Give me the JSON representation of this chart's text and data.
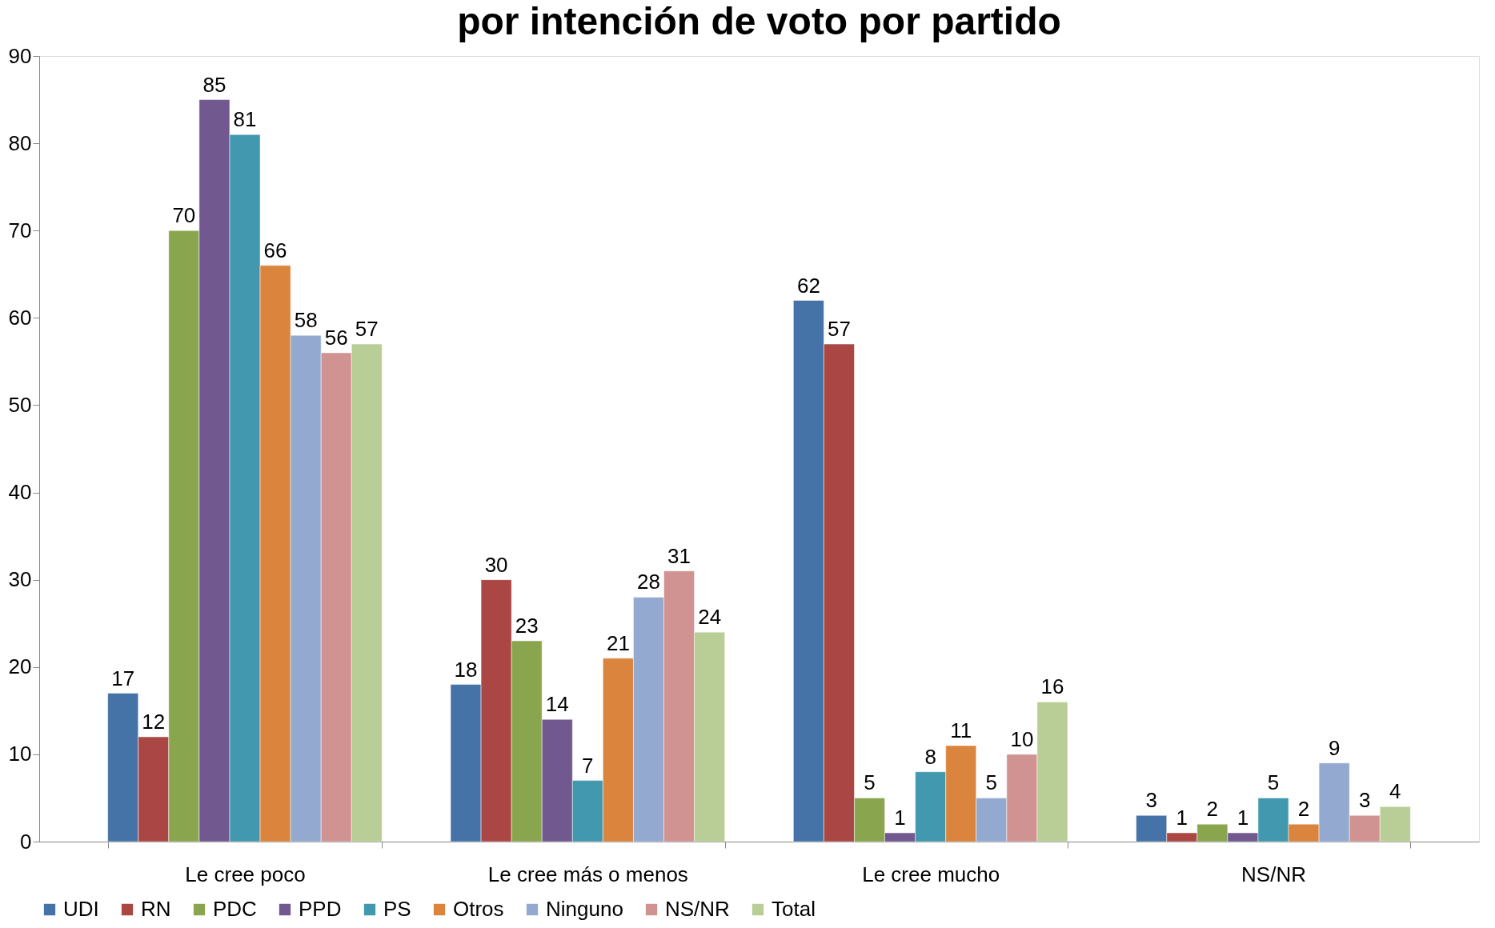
{
  "chart_data": {
    "type": "bar",
    "title": "por intención de voto por partido",
    "categories": [
      "Le cree poco",
      "Le cree más o menos",
      "Le cree mucho",
      "NS/NR"
    ],
    "series": [
      {
        "name": "UDI",
        "color": "#4572a7",
        "values": [
          17,
          18,
          62,
          3
        ]
      },
      {
        "name": "RN",
        "color": "#aa4643",
        "values": [
          12,
          30,
          57,
          1
        ]
      },
      {
        "name": "PDC",
        "color": "#89a54e",
        "values": [
          70,
          23,
          5,
          2
        ]
      },
      {
        "name": "PPD",
        "color": "#71588f",
        "values": [
          85,
          14,
          1,
          1
        ]
      },
      {
        "name": "PS",
        "color": "#4198af",
        "values": [
          81,
          7,
          8,
          5
        ]
      },
      {
        "name": "Otros",
        "color": "#db843d",
        "values": [
          66,
          21,
          11,
          2
        ]
      },
      {
        "name": "Ninguno",
        "color": "#93a9cf",
        "values": [
          58,
          28,
          5,
          9
        ]
      },
      {
        "name": "NS/NR",
        "color": "#d19392",
        "values": [
          56,
          31,
          10,
          3
        ]
      },
      {
        "name": "Total",
        "color": "#b9cd96",
        "values": [
          57,
          24,
          16,
          4
        ]
      }
    ],
    "ylim": [
      0,
      90
    ],
    "yticks": [
      0,
      10,
      20,
      30,
      40,
      50,
      60,
      70,
      80,
      90
    ],
    "data_labels": true,
    "grid": false,
    "legend": "bottom"
  }
}
